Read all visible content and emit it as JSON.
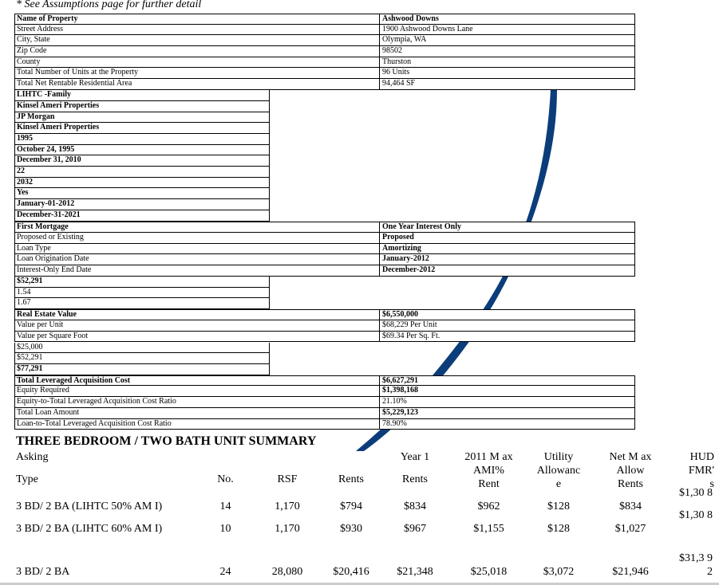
{
  "note": "* See Assumptions page for further detail",
  "colors": {
    "swoosh": "#0b3d7a"
  },
  "sections": [
    {
      "type": "full",
      "rows": [
        {
          "label": "Name of Property",
          "value": "Ashwood Downs",
          "bold": true
        },
        {
          "label": "Street Address",
          "value": "1900 Ashwood Downs Lane"
        },
        {
          "label": "City, State",
          "value": "Olympia, WA"
        },
        {
          "label": "Zip Code",
          "value": "98502"
        },
        {
          "label": "County",
          "value": "Thurston"
        },
        {
          "label": "Total Number of Units at the Property",
          "value": "96 Units"
        },
        {
          "label": "Total Net Rentable Residential Area",
          "value": "94,464 SF"
        }
      ]
    },
    {
      "type": "half",
      "rows": [
        {
          "label": "LIHTC -Family",
          "bold": true
        },
        {
          "label": "Kinsel Ameri Properties",
          "bold": true
        },
        {
          "label": "JP Morgan",
          "bold": true
        },
        {
          "label": "Kinsel Ameri Properties",
          "bold": true
        },
        {
          "label": "1995",
          "bold": true
        },
        {
          "label": "October 24, 1995",
          "bold": true
        },
        {
          "label": "December 31, 2010",
          "bold": true
        },
        {
          "label": "22",
          "bold": true
        },
        {
          "label": "2032",
          "bold": true
        },
        {
          "label": "Yes",
          "bold": true
        },
        {
          "label": "January-01-2012",
          "bold": true
        },
        {
          "label": "December-31-2021",
          "bold": true
        }
      ]
    },
    {
      "type": "full",
      "rows": [
        {
          "label": "First Mortgage",
          "value": "One Year Interest Only",
          "bold": true
        },
        {
          "label": "Proposed or Existing",
          "value": "Proposed",
          "vbold": true
        },
        {
          "label": "Loan Type",
          "value": "Amortizing",
          "vbold": true
        },
        {
          "label": "Loan Origination Date",
          "value": "January-2012",
          "vbold": true
        },
        {
          "label": "Interest-Only End Date",
          "value": "December-2012",
          "vbold": true
        }
      ]
    },
    {
      "type": "half",
      "rows": [
        {
          "label": "$52,291",
          "bold": true
        },
        {
          "label": "1.54"
        },
        {
          "label": "1.67"
        }
      ]
    },
    {
      "type": "full",
      "rows": [
        {
          "label": "Real Estate Value",
          "value": "$6,550,000",
          "bold": true
        },
        {
          "label": "Value per Unit",
          "value": "$68,229 Per Unit"
        },
        {
          "label": "Value per Square Foot",
          "value": "$69.34 Per Sq. Ft."
        }
      ]
    },
    {
      "type": "half",
      "rows": [
        {
          "label": "$25,000"
        },
        {
          "label": "$52,291"
        },
        {
          "label": "$77,291",
          "bold": true
        }
      ]
    },
    {
      "type": "full",
      "rows": [
        {
          "label": "Total Leveraged Acquisition Cost",
          "value": "$6,627,291",
          "bold": true
        },
        {
          "label": "Equity Required",
          "value": "$1,398,168",
          "vbold": true
        },
        {
          "label": "Equity-to-Total Leveraged Acquisition Cost Ratio",
          "value": "21.10%"
        },
        {
          "label": "Total Loan Amount",
          "value": "$5,229,123",
          "vbold": true
        },
        {
          "label": "Loan-to-Total Leveraged Acquisition Cost Ratio",
          "value": "78.90%"
        }
      ]
    }
  ],
  "summary": {
    "title": "THREE BEDROOM / TWO BATH UNIT SUMMARY",
    "headers": [
      [
        "Asking",
        "Type"
      ],
      [
        "No."
      ],
      [
        "RSF"
      ],
      [
        "Rents"
      ],
      [
        "Year 1",
        "Rents"
      ],
      [
        "2011 M ax",
        "AMI%",
        "Rent"
      ],
      [
        "Utility",
        "Allowanc",
        "e"
      ],
      [
        "Net M ax",
        "Allow",
        "Rents"
      ],
      [
        "HUD",
        "FMR'",
        "s"
      ]
    ],
    "rows": [
      [
        "3 BD/ 2 BA (LIHTC 50% AM I)",
        "14",
        "1,170",
        "$794",
        "$834",
        "$962",
        "$128",
        "$834",
        "$1,30 8"
      ],
      [
        "3 BD/ 2 BA (LIHTC 60% AM I)",
        "10",
        "1,170",
        "$930",
        "$967",
        "$1,155",
        "$128",
        "$1,027",
        "$1,30 8"
      ],
      [
        "3 BD/ 2 BA",
        "24",
        "28,080",
        "$20,416",
        "$21,348",
        "$25,018",
        "$3,072",
        "$21,946",
        "$31,3 92"
      ]
    ]
  }
}
